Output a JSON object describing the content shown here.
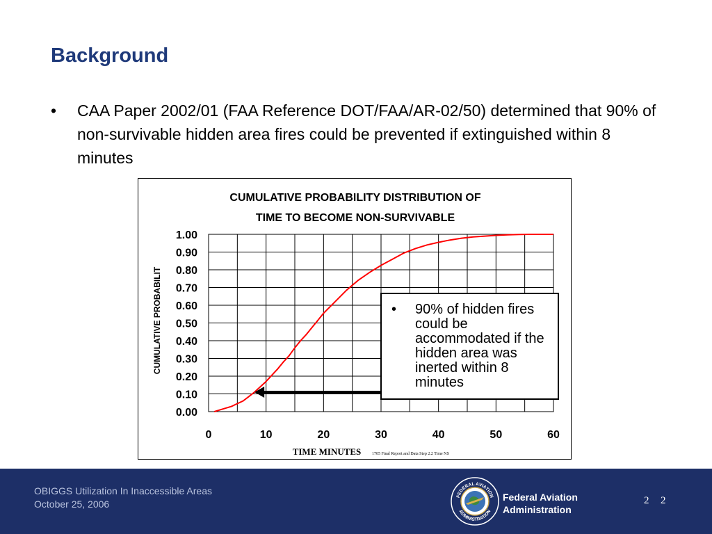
{
  "slide": {
    "title": "Background",
    "bullet_symbol": "•",
    "bullet_text": "CAA Paper 2002/01 (FAA Reference DOT/FAA/AR-02/50) determined that 90% of non-survivable hidden area fires could be prevented if extinguished within 8 minutes"
  },
  "callout": {
    "bullet_symbol": "•",
    "text": "90% of hidden fires could be accommodated if the hidden area was inerted within 8 minutes"
  },
  "chart_data": {
    "type": "line",
    "title_lines": [
      "CUMULATIVE PROBABILITY DISTRIBUTION OF",
      "TIME TO BECOME NON-SURVIVABLE"
    ],
    "xlabel": "TIME MINUTES",
    "ylabel": "CUMULATIVE PROBABILIT",
    "source_note": "1705 Final Report and Data Step 2.2 Time NS",
    "xlim": [
      0,
      60
    ],
    "ylim": [
      0,
      1
    ],
    "x_ticks": [
      "0",
      "10",
      "20",
      "30",
      "40",
      "50",
      "60"
    ],
    "y_ticks": [
      "0.00",
      "0.10",
      "0.20",
      "0.30",
      "0.40",
      "0.50",
      "0.60",
      "0.70",
      "0.80",
      "0.90",
      "1.00"
    ],
    "grid": true,
    "series": [
      {
        "color": "#ff0000",
        "x": [
          1,
          2,
          3,
          4,
          5,
          6,
          7,
          8,
          9,
          10,
          11,
          12,
          13,
          14,
          15,
          16,
          17,
          18,
          19,
          20,
          22,
          24,
          26,
          28,
          30,
          32,
          34,
          36,
          38,
          40,
          42,
          44,
          46,
          48,
          50,
          52,
          54,
          56,
          58,
          60
        ],
        "y": [
          0.0,
          0.01,
          0.02,
          0.03,
          0.045,
          0.06,
          0.085,
          0.11,
          0.14,
          0.17,
          0.205,
          0.24,
          0.28,
          0.315,
          0.36,
          0.4,
          0.435,
          0.475,
          0.515,
          0.555,
          0.62,
          0.685,
          0.74,
          0.785,
          0.825,
          0.86,
          0.895,
          0.92,
          0.94,
          0.955,
          0.968,
          0.978,
          0.985,
          0.99,
          0.994,
          0.997,
          0.999,
          1.0,
          1.0,
          1.0
        ]
      }
    ],
    "annotation_arrow": {
      "from_x": 30.5,
      "to_x": 8,
      "y": 0.11
    }
  },
  "footer": {
    "line1": "OBIGGS Utilization In Inaccessible Areas",
    "line2": "October 25, 2006",
    "agency_line1": "Federal Aviation",
    "agency_line2": "Administration",
    "page_number_a": "2",
    "page_number_b": "2",
    "seal_top_text": "FEDERAL AVIATION",
    "seal_bottom_text": "ADMINISTRATION"
  },
  "colors": {
    "title": "#1f3a7a",
    "footer_bg": "#1d2f67",
    "curve": "#ff0000"
  }
}
